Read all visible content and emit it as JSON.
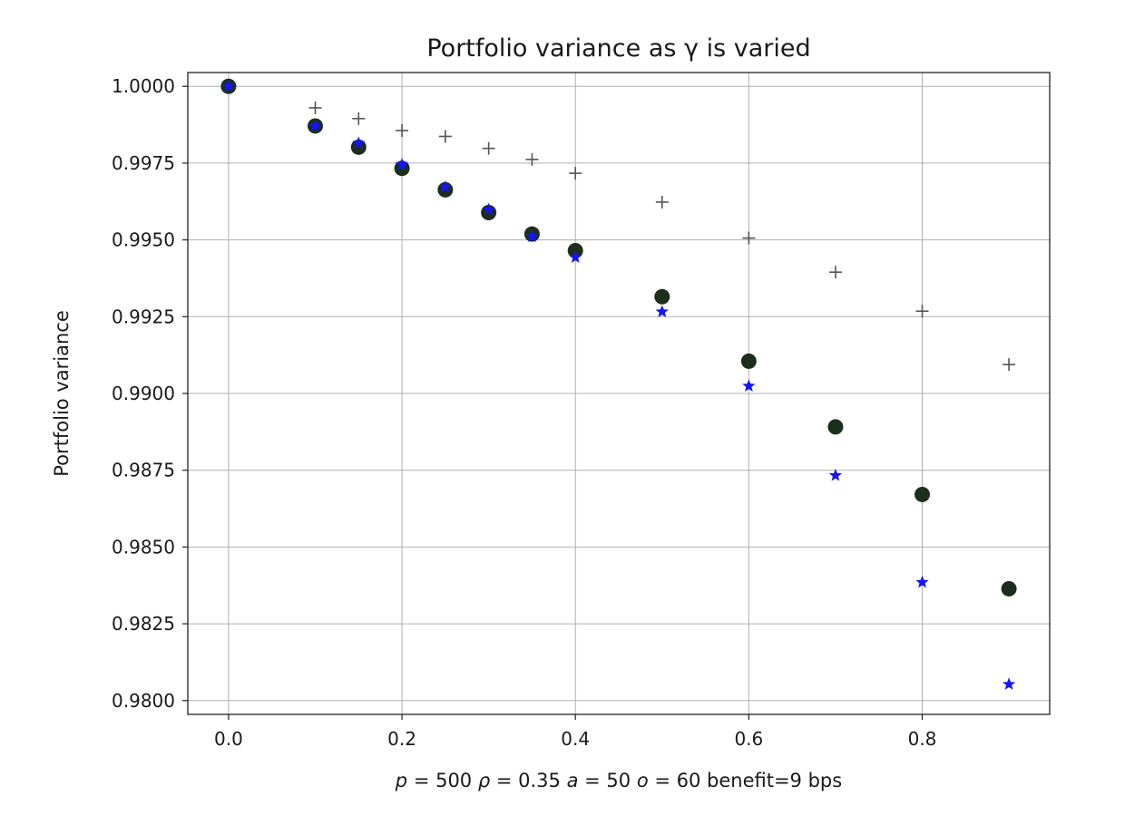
{
  "chart_data": {
    "type": "scatter",
    "title": "Portfolio variance as γ is varied",
    "ylabel": "Portfolio variance",
    "xlabel_parts": {
      "p": "p",
      "p_val": " = 500 ",
      "rho": "ρ",
      "rho_val": " = 0.35 ",
      "a": "a",
      "a_val": " = 50 ",
      "o": "o",
      "o_val": " = 60  benefit=9 bps"
    },
    "xlim": [
      -0.047,
      0.947
    ],
    "ylim": [
      0.97955,
      1.00045
    ],
    "grid": true,
    "x_ticks": [
      {
        "value": 0.0,
        "label": "0.0"
      },
      {
        "value": 0.2,
        "label": "0.2"
      },
      {
        "value": 0.4,
        "label": "0.4"
      },
      {
        "value": 0.6,
        "label": "0.6"
      },
      {
        "value": 0.8,
        "label": "0.8"
      }
    ],
    "y_ticks": [
      {
        "value": 1.0,
        "label": "1.0000"
      },
      {
        "value": 0.9975,
        "label": "0.9975"
      },
      {
        "value": 0.995,
        "label": "0.9950"
      },
      {
        "value": 0.9925,
        "label": "0.9925"
      },
      {
        "value": 0.99,
        "label": "0.9900"
      },
      {
        "value": 0.9875,
        "label": "0.9875"
      },
      {
        "value": 0.985,
        "label": "0.9850"
      },
      {
        "value": 0.9825,
        "label": "0.9825"
      },
      {
        "value": 0.98,
        "label": "0.9800"
      }
    ],
    "series": [
      {
        "marker": "plus",
        "color": "#555555",
        "x": [
          0.0,
          0.1,
          0.15,
          0.2,
          0.25,
          0.3,
          0.35,
          0.4,
          0.5,
          0.6,
          0.7,
          0.8,
          0.9
        ],
        "y": [
          1.0,
          0.9993,
          0.99895,
          0.99856,
          0.99837,
          0.99798,
          0.99762,
          0.99717,
          0.99623,
          0.99506,
          0.99395,
          0.99268,
          0.99094
        ]
      },
      {
        "marker": "circle",
        "color": "#1c2e1c",
        "x": [
          0.0,
          0.1,
          0.15,
          0.2,
          0.25,
          0.3,
          0.35,
          0.4,
          0.5,
          0.6,
          0.7,
          0.8,
          0.9
        ],
        "y": [
          1.0,
          0.99871,
          0.99802,
          0.99733,
          0.99663,
          0.99589,
          0.99519,
          0.99465,
          0.99315,
          0.99105,
          0.98891,
          0.98671,
          0.98364
        ]
      },
      {
        "marker": "star",
        "color": "#1515f5",
        "x": [
          0.0,
          0.1,
          0.15,
          0.2,
          0.25,
          0.3,
          0.35,
          0.4,
          0.5,
          0.6,
          0.7,
          0.8,
          0.9
        ],
        "y": [
          1.0,
          0.99871,
          0.99815,
          0.99745,
          0.99672,
          0.99599,
          0.99511,
          0.99443,
          0.99266,
          0.99024,
          0.98733,
          0.98385,
          0.98053
        ]
      }
    ]
  }
}
